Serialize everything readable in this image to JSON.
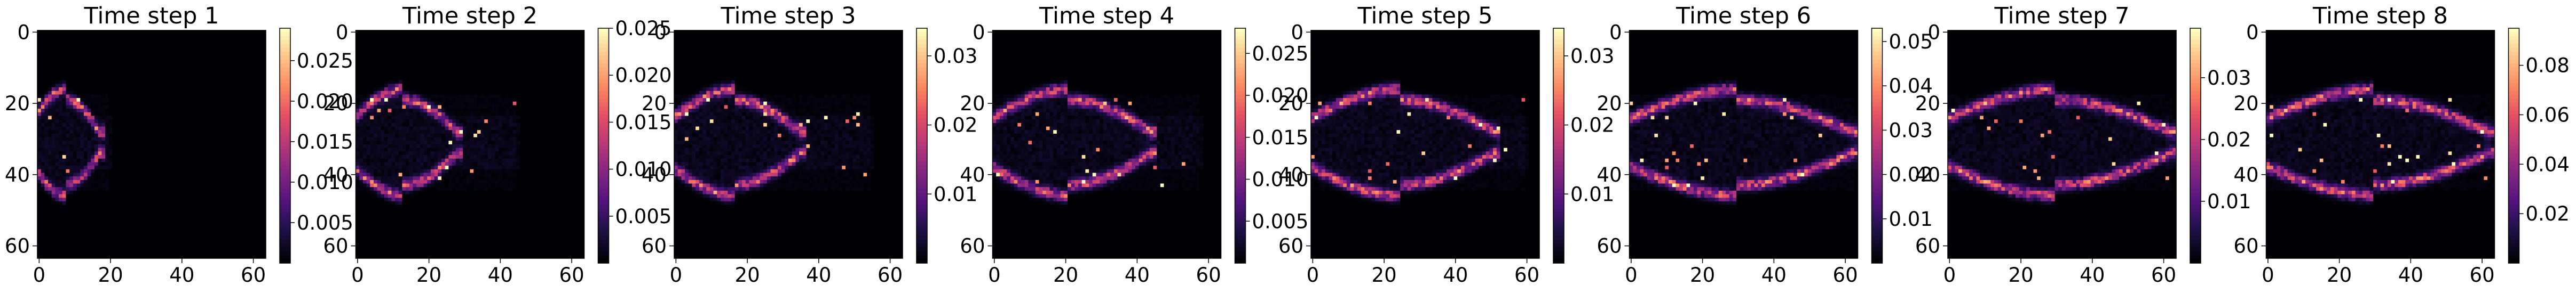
{
  "chart_data": {
    "type": "heatmap",
    "colormap": "magma",
    "grid": false,
    "x_ticks": [
      0,
      20,
      40,
      60
    ],
    "y_ticks": [
      0,
      20,
      40,
      60
    ],
    "xlim": [
      0,
      63
    ],
    "ylim": [
      63,
      0
    ],
    "panels": [
      {
        "title": "Time step 1",
        "colorbar_ticks": [
          "0.005",
          "0.010",
          "0.015",
          "0.020",
          "0.025"
        ],
        "colorbar_range": [
          0,
          0.029
        ],
        "front_x": 15,
        "activity_extent_x": 20
      },
      {
        "title": "Time step 2",
        "colorbar_ticks": [
          "0.005",
          "0.010",
          "0.015",
          "0.020",
          "0.025"
        ],
        "colorbar_range": [
          0,
          0.025
        ],
        "front_x": 26,
        "activity_extent_x": 45
      },
      {
        "title": "Time step 3",
        "colorbar_ticks": [
          "0.01",
          "0.02",
          "0.03"
        ],
        "colorbar_range": [
          0,
          0.034
        ],
        "front_x": 33,
        "activity_extent_x": 55
      },
      {
        "title": "Time step 4",
        "colorbar_ticks": [
          "0.005",
          "0.010",
          "0.015",
          "0.020",
          "0.025"
        ],
        "colorbar_range": [
          0,
          0.028
        ],
        "front_x": 42,
        "activity_extent_x": 58
      },
      {
        "title": "Time step 5",
        "colorbar_ticks": [
          "0.01",
          "0.02",
          "0.03"
        ],
        "colorbar_range": [
          0,
          0.034
        ],
        "front_x": 49,
        "activity_extent_x": 60
      },
      {
        "title": "Time step 6",
        "colorbar_ticks": [
          "0.01",
          "0.02",
          "0.03",
          "0.04",
          "0.05"
        ],
        "colorbar_range": [
          0,
          0.053
        ],
        "front_x": 60,
        "activity_extent_x": 63
      },
      {
        "title": "Time step 7",
        "colorbar_ticks": [
          "0.01",
          "0.02",
          "0.03"
        ],
        "colorbar_range": [
          0,
          0.038
        ],
        "front_x": 60,
        "activity_extent_x": 63
      },
      {
        "title": "Time step 8",
        "colorbar_ticks": [
          "0.02",
          "0.04",
          "0.06",
          "0.08"
        ],
        "colorbar_range": [
          0,
          0.095
        ],
        "front_x": 60,
        "activity_extent_x": 63
      }
    ]
  }
}
